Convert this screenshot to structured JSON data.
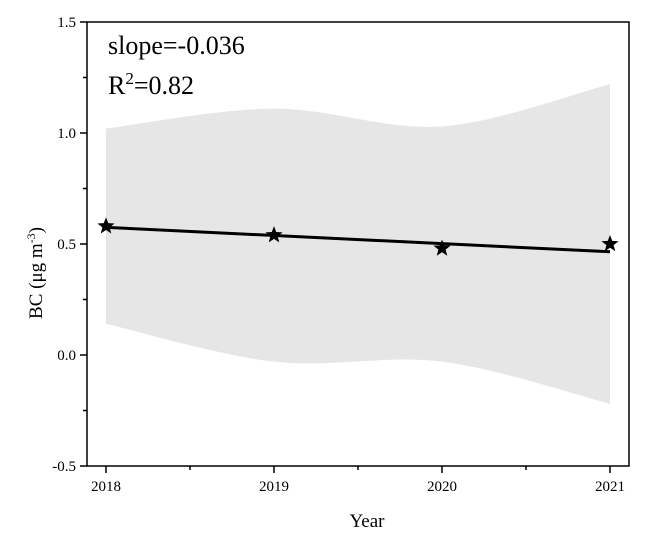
{
  "chart_data": {
    "type": "line",
    "xlabel": "Year",
    "ylabel_main": "BC (μg m",
    "ylabel_sup": "-3",
    "ylabel_close": ")",
    "x_ticks": [
      "2018",
      "2019",
      "2020",
      "2021"
    ],
    "y_ticks": [
      "-0.5",
      "0.0",
      "0.5",
      "1.0",
      "1.5"
    ],
    "xlim": [
      2018,
      2021
    ],
    "ylim": [
      -0.5,
      1.5
    ],
    "grid": false,
    "points": {
      "x": [
        2018,
        2019,
        2020,
        2021
      ],
      "y": [
        0.58,
        0.54,
        0.48,
        0.5
      ],
      "marker": "star",
      "color": "#000000"
    },
    "fit_line": {
      "x": [
        2018,
        2021
      ],
      "y": [
        0.575,
        0.465
      ],
      "color": "#000000"
    },
    "confidence_band": {
      "x": [
        2018,
        2019,
        2020,
        2021
      ],
      "upper": [
        1.02,
        1.11,
        1.03,
        1.22
      ],
      "lower": [
        0.14,
        -0.03,
        -0.03,
        -0.22
      ],
      "color": "#e6e6e6"
    },
    "annotations": {
      "slope_text": "slope=-0.036",
      "r2_prefix": "R",
      "r2_sup": "2",
      "r2_value": "=0.82"
    }
  }
}
